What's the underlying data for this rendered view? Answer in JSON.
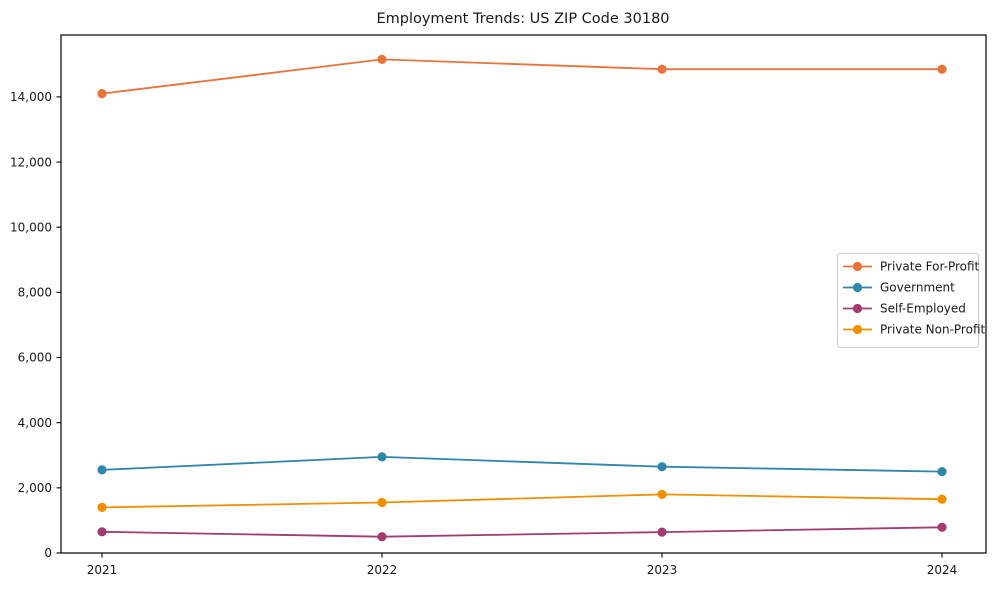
{
  "chart_data": {
    "type": "line",
    "title": "Employment Trends: US ZIP Code 30180",
    "xlabel": "",
    "ylabel": "",
    "x": [
      "2021",
      "2022",
      "2023",
      "2024"
    ],
    "series": [
      {
        "name": "Private For-Profit",
        "color": "#E8743B",
        "values": [
          14100,
          15150,
          14850,
          14850
        ]
      },
      {
        "name": "Government",
        "color": "#2E86AB",
        "values": [
          2550,
          2950,
          2650,
          2500
        ]
      },
      {
        "name": "Self-Employed",
        "color": "#A23B72",
        "values": [
          650,
          500,
          640,
          790
        ]
      },
      {
        "name": "Private Non-Profit",
        "color": "#F18F01",
        "values": [
          1400,
          1550,
          1800,
          1650
        ]
      }
    ],
    "ylim": [
      0,
      15900
    ],
    "yticks": [
      0,
      2000,
      4000,
      6000,
      8000,
      10000,
      12000,
      14000
    ],
    "ytick_labels": [
      "0",
      "2,000",
      "4,000",
      "6,000",
      "8,000",
      "10,000",
      "12,000",
      "14,000"
    ],
    "grid": false,
    "legend_position": "center right",
    "marker": "circle",
    "frame": "full-box",
    "axis_color": "#000000",
    "legend_border_color": "#cccccc"
  }
}
